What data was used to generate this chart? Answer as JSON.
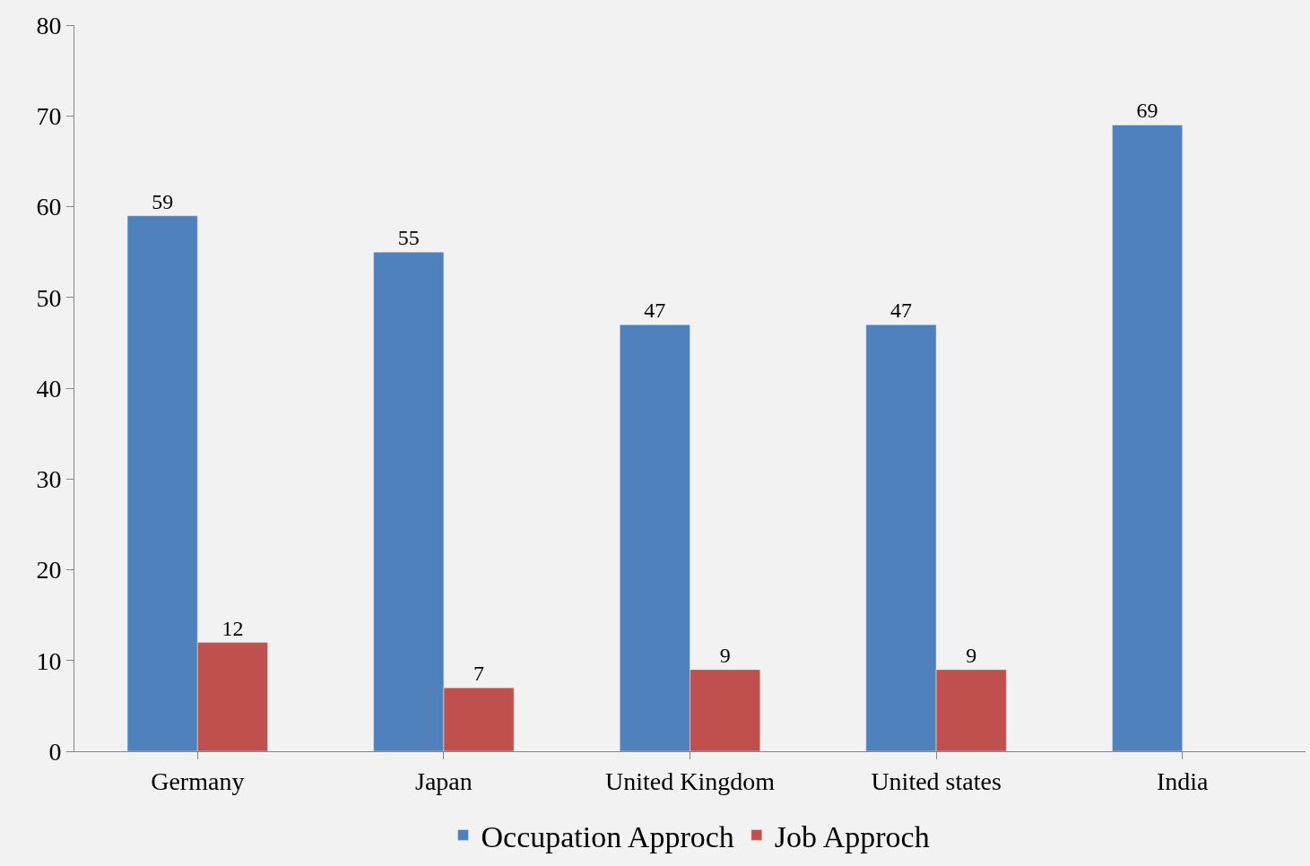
{
  "chart_data": {
    "type": "bar",
    "categories": [
      "Germany",
      "Japan",
      "United Kingdom",
      "United states",
      "India"
    ],
    "series": [
      {
        "name": "Occupation Approch",
        "color": "#4f81bd",
        "values": [
          59,
          55,
          47,
          47,
          69
        ]
      },
      {
        "name": "Job Approch",
        "color": "#c0504d",
        "values": [
          12,
          7,
          9,
          9,
          null
        ]
      }
    ],
    "ylim": [
      0,
      80
    ],
    "yticks": [
      0,
      10,
      20,
      30,
      40,
      50,
      60,
      70,
      80
    ],
    "data_labels": true,
    "grid": false,
    "legend": "bottom"
  }
}
